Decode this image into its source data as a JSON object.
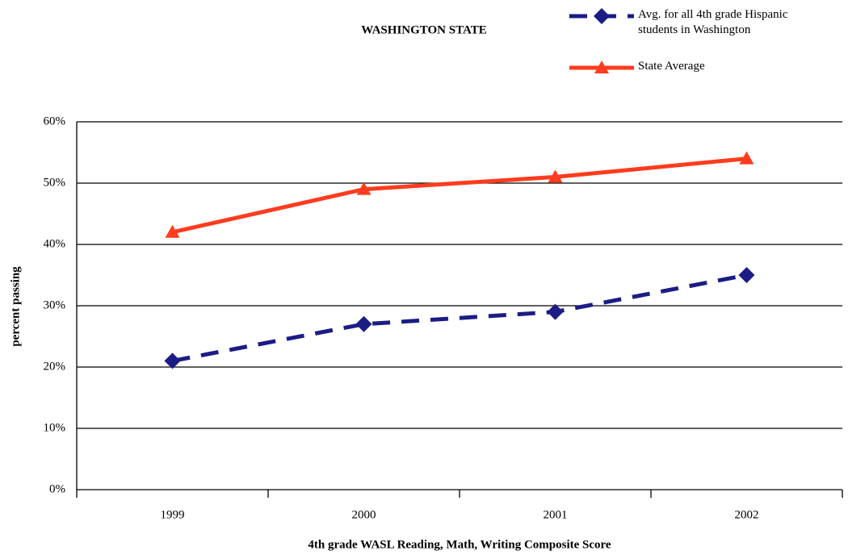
{
  "chart_data": {
    "type": "line",
    "title": "WASHINGTON STATE",
    "x_label": "4th grade WASL Reading, Math, Writing Composite Score",
    "y_label": "percent passing",
    "categories": [
      "1999",
      "2000",
      "2001",
      "2002"
    ],
    "series": [
      {
        "name": "Avg. for all 4th grade Hispanic students in Washington",
        "color": "#1c1c86",
        "marker": "diamond",
        "line_style": "dashed",
        "values": [
          21,
          27,
          29,
          35
        ]
      },
      {
        "name": "State Average",
        "color": "#ff3c1e",
        "marker": "triangle",
        "line_style": "solid",
        "values": [
          42,
          49,
          51,
          54
        ]
      }
    ],
    "ylim": [
      0,
      60
    ],
    "yticks": [
      {
        "value": 0,
        "label": "0%"
      },
      {
        "value": 10,
        "label": "10%"
      },
      {
        "value": 20,
        "label": "20%"
      },
      {
        "value": 30,
        "label": "30%"
      },
      {
        "value": 40,
        "label": "40%"
      },
      {
        "value": 50,
        "label": "50%"
      },
      {
        "value": 60,
        "label": "60%"
      }
    ],
    "grid": true,
    "legend_position": "top-right"
  }
}
